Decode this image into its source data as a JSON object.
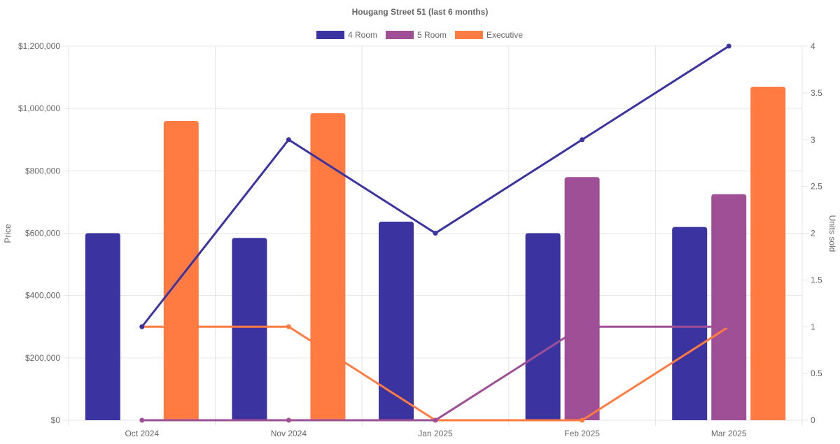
{
  "chart_data": {
    "type": "bar",
    "title": "Hougang Street 51 (last 6 months)",
    "categories": [
      "Oct 2024",
      "Nov 2024",
      "Jan 2025",
      "Feb 2025",
      "Mar 2025"
    ],
    "legend_position": "top",
    "grid": true,
    "y_left": {
      "label": "Price",
      "min": 0,
      "max": 1200000,
      "ticks": [
        0,
        200000,
        400000,
        600000,
        800000,
        1000000,
        1200000
      ],
      "tick_labels": [
        "$0",
        "$200,000",
        "$400,000",
        "$600,000",
        "$800,000",
        "$1,000,000",
        "$1,200,000"
      ]
    },
    "y_right": {
      "label": "Units sold",
      "min": 0,
      "max": 4,
      "ticks": [
        0,
        0.5,
        1,
        1.5,
        2,
        2.5,
        3,
        3.5,
        4
      ],
      "tick_labels": [
        "0",
        "0.5",
        "1",
        "1.5",
        "2",
        "2.5",
        "3",
        "3.5",
        "4"
      ]
    },
    "series": [
      {
        "name": "4 Room",
        "color": "#3a33a0",
        "price": [
          600000,
          585000,
          637000,
          600000,
          620000
        ],
        "units": [
          1,
          3,
          2,
          3,
          4
        ]
      },
      {
        "name": "5 Room",
        "color": "#9e4f96",
        "price": [
          null,
          null,
          null,
          780000,
          725000
        ],
        "units": [
          0,
          0,
          0,
          1,
          1
        ]
      },
      {
        "name": "Executive",
        "color": "#ff7b41",
        "price": [
          960000,
          985000,
          null,
          null,
          1070000
        ],
        "units": [
          1,
          1,
          0,
          0,
          1
        ]
      }
    ]
  }
}
